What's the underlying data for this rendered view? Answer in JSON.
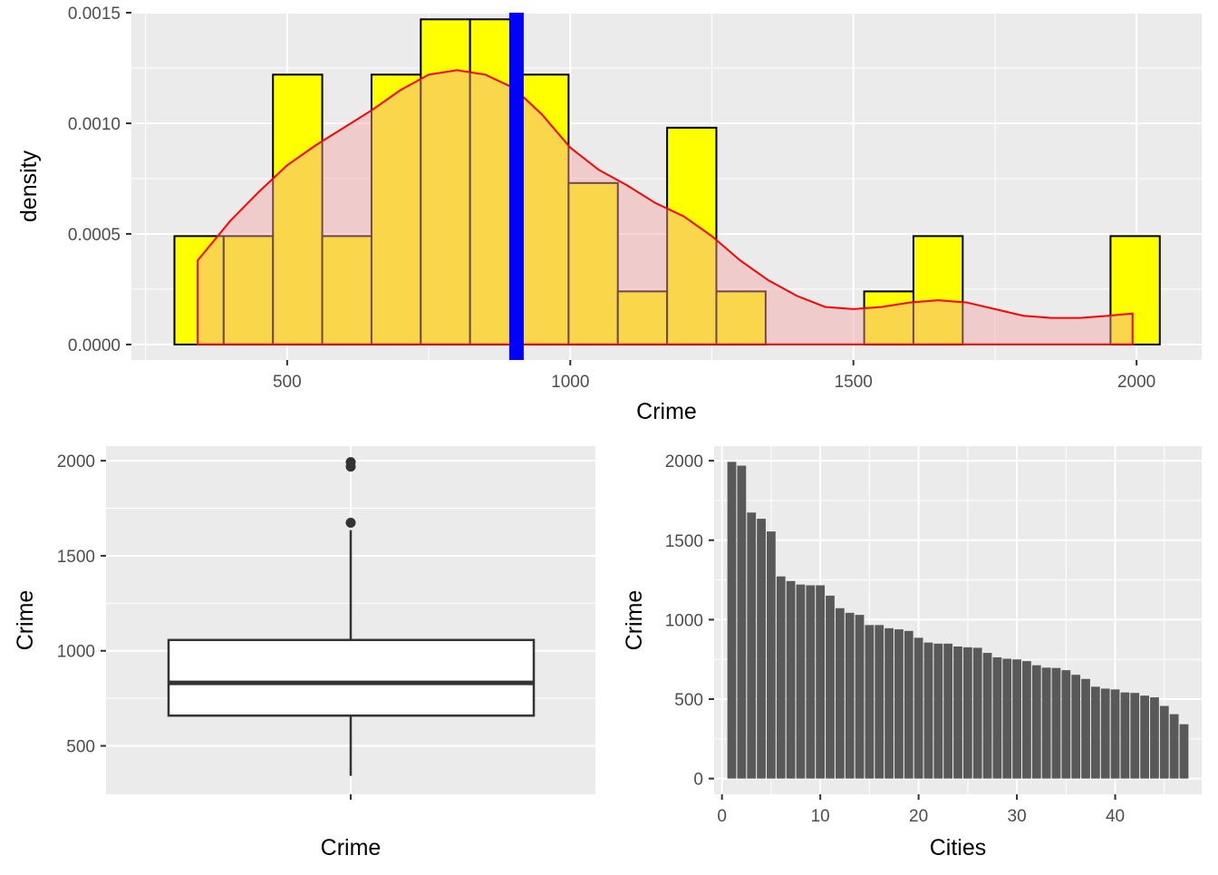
{
  "colors": {
    "panel": "#ebebeb",
    "grid": "#ffffff",
    "hist_fill": "#ffff00",
    "bar_fill": "#595959",
    "density_line": "#ff0000",
    "density_fill": "#f4a3a3",
    "mean_line": "#0000ff"
  },
  "chart_data": [
    {
      "type": "histogram",
      "xlabel": "Crime",
      "ylabel": "density",
      "xlim": [
        225,
        2115
      ],
      "ylim": [
        -7e-05,
        0.0015
      ],
      "x_ticks": [
        "500",
        "1000",
        "1500",
        "2000"
      ],
      "y_ticks": [
        "0.0000",
        "0.0005",
        "0.0010",
        "0.0015"
      ],
      "bins": [
        {
          "start": 301,
          "end": 388,
          "density": 0.00049
        },
        {
          "start": 388,
          "end": 475,
          "density": 0.00049
        },
        {
          "start": 475,
          "end": 562,
          "density": 0.00122
        },
        {
          "start": 562,
          "end": 649,
          "density": 0.00049
        },
        {
          "start": 649,
          "end": 736,
          "density": 0.00122
        },
        {
          "start": 736,
          "end": 823,
          "density": 0.00147
        },
        {
          "start": 823,
          "end": 910,
          "density": 0.00147
        },
        {
          "start": 910,
          "end": 997,
          "density": 0.00122
        },
        {
          "start": 997,
          "end": 1084,
          "density": 0.00073
        },
        {
          "start": 1084,
          "end": 1171,
          "density": 0.00024
        },
        {
          "start": 1171,
          "end": 1258,
          "density": 0.00098
        },
        {
          "start": 1258,
          "end": 1345,
          "density": 0.00024
        },
        {
          "start": 1519,
          "end": 1606,
          "density": 0.00024
        },
        {
          "start": 1606,
          "end": 1693,
          "density": 0.00049
        },
        {
          "start": 1954,
          "end": 2041,
          "density": 0.00049
        }
      ],
      "mean_line_x": 905,
      "density_curve": {
        "x": [
          342,
          400,
          450,
          500,
          550,
          600,
          650,
          700,
          750,
          800,
          850,
          900,
          950,
          1000,
          1050,
          1100,
          1150,
          1200,
          1250,
          1300,
          1350,
          1400,
          1450,
          1500,
          1550,
          1600,
          1650,
          1700,
          1750,
          1800,
          1850,
          1900,
          1950,
          1993
        ],
        "y": [
          0.00038,
          0.00056,
          0.00069,
          0.00081,
          0.0009,
          0.00098,
          0.00106,
          0.00115,
          0.00122,
          0.00124,
          0.00122,
          0.00116,
          0.00104,
          0.00089,
          0.00079,
          0.00072,
          0.00064,
          0.00058,
          0.00049,
          0.00038,
          0.00029,
          0.00022,
          0.00017,
          0.00016,
          0.00017,
          0.00019,
          0.0002,
          0.00019,
          0.00016,
          0.00013,
          0.00012,
          0.00012,
          0.00013,
          0.00014
        ]
      }
    },
    {
      "type": "boxplot",
      "xlabel": "Crime",
      "ylabel": "Crime",
      "x_category": "",
      "ylim": [
        245,
        2077
      ],
      "y_ticks": [
        500,
        1000,
        1500,
        2000
      ],
      "min": 342,
      "q1": 659,
      "median": 831,
      "q3": 1057,
      "whisker_high": 1635,
      "outliers": [
        1674,
        1969,
        1993
      ]
    },
    {
      "type": "bar",
      "xlabel": "Cities",
      "ylabel": "Crime",
      "xlim": [
        -0.8,
        48.8
      ],
      "ylim": [
        -99,
        2092
      ],
      "x_ticks": [
        0,
        10,
        20,
        30,
        40
      ],
      "y_ticks": [
        0,
        500,
        1000,
        1500,
        2000
      ],
      "x": [
        1,
        2,
        3,
        4,
        5,
        6,
        7,
        8,
        9,
        10,
        11,
        12,
        13,
        14,
        15,
        16,
        17,
        18,
        19,
        20,
        21,
        22,
        23,
        24,
        25,
        26,
        27,
        28,
        29,
        30,
        31,
        32,
        33,
        34,
        35,
        36,
        37,
        38,
        39,
        40,
        41,
        42,
        43,
        44,
        45,
        46,
        47
      ],
      "values": [
        1993,
        1969,
        1674,
        1635,
        1555,
        1272,
        1243,
        1221,
        1216,
        1216,
        1151,
        1072,
        1043,
        1030,
        966,
        966,
        946,
        939,
        929,
        886,
        856,
        849,
        849,
        831,
        826,
        823,
        791,
        763,
        754,
        750,
        739,
        713,
        698,
        696,
        682,
        653,
        627,
        578,
        566,
        561,
        542,
        539,
        522,
        511,
        457,
        405,
        342
      ]
    }
  ]
}
